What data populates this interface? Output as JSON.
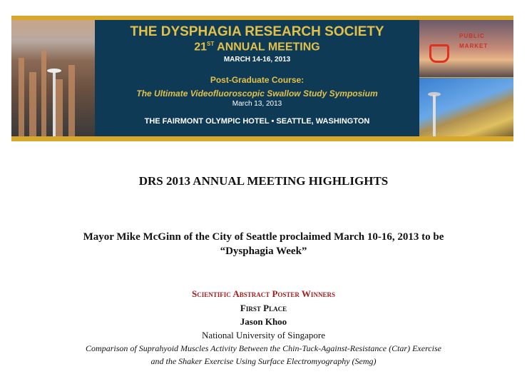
{
  "banner": {
    "org": "THE DYSPHAGIA RESEARCH SOCIETY",
    "meeting_num": "21",
    "meeting_sup": "ST",
    "meeting": "ANNUAL MEETING",
    "meeting_dates": "MARCH 14-16, 2013",
    "course_label": "Post-Graduate Course:",
    "course_title": "The Ultimate Videofluoroscopic Swallow Study Symposium",
    "course_date": "March 13, 2013",
    "venue": "THE FAIRMONT OLYMPIC HOTEL • SEATTLE, WASHINGTON",
    "sign_text": "PUBLIC MARKET",
    "colors": {
      "gold": "#d7a82a",
      "navy": "#0e3a55",
      "title_gold": "#e2c14a"
    }
  },
  "heading": "DRS 2013 ANNUAL MEETING HIGHLIGHTS",
  "proclamation": {
    "line1": "Mayor Mike McGinn of the City of Seattle proclaimed March 10-16, 2013 to be",
    "line2": "“Dysphagia Week”"
  },
  "winners": {
    "section": "Scientific Abstract Poster Winners",
    "place": "First Place",
    "name": "Jason Khoo",
    "affiliation": "National University of Singapore",
    "title_line1": "Comparison of Suprahyoid Muscles Activity Between the Chin-Tuck-Against-Resistance (Ctar) Exercise",
    "title_line2": "and the Shaker Exercise Using Surface Electromyography (Semg)",
    "section_color": "#a61c1c"
  }
}
